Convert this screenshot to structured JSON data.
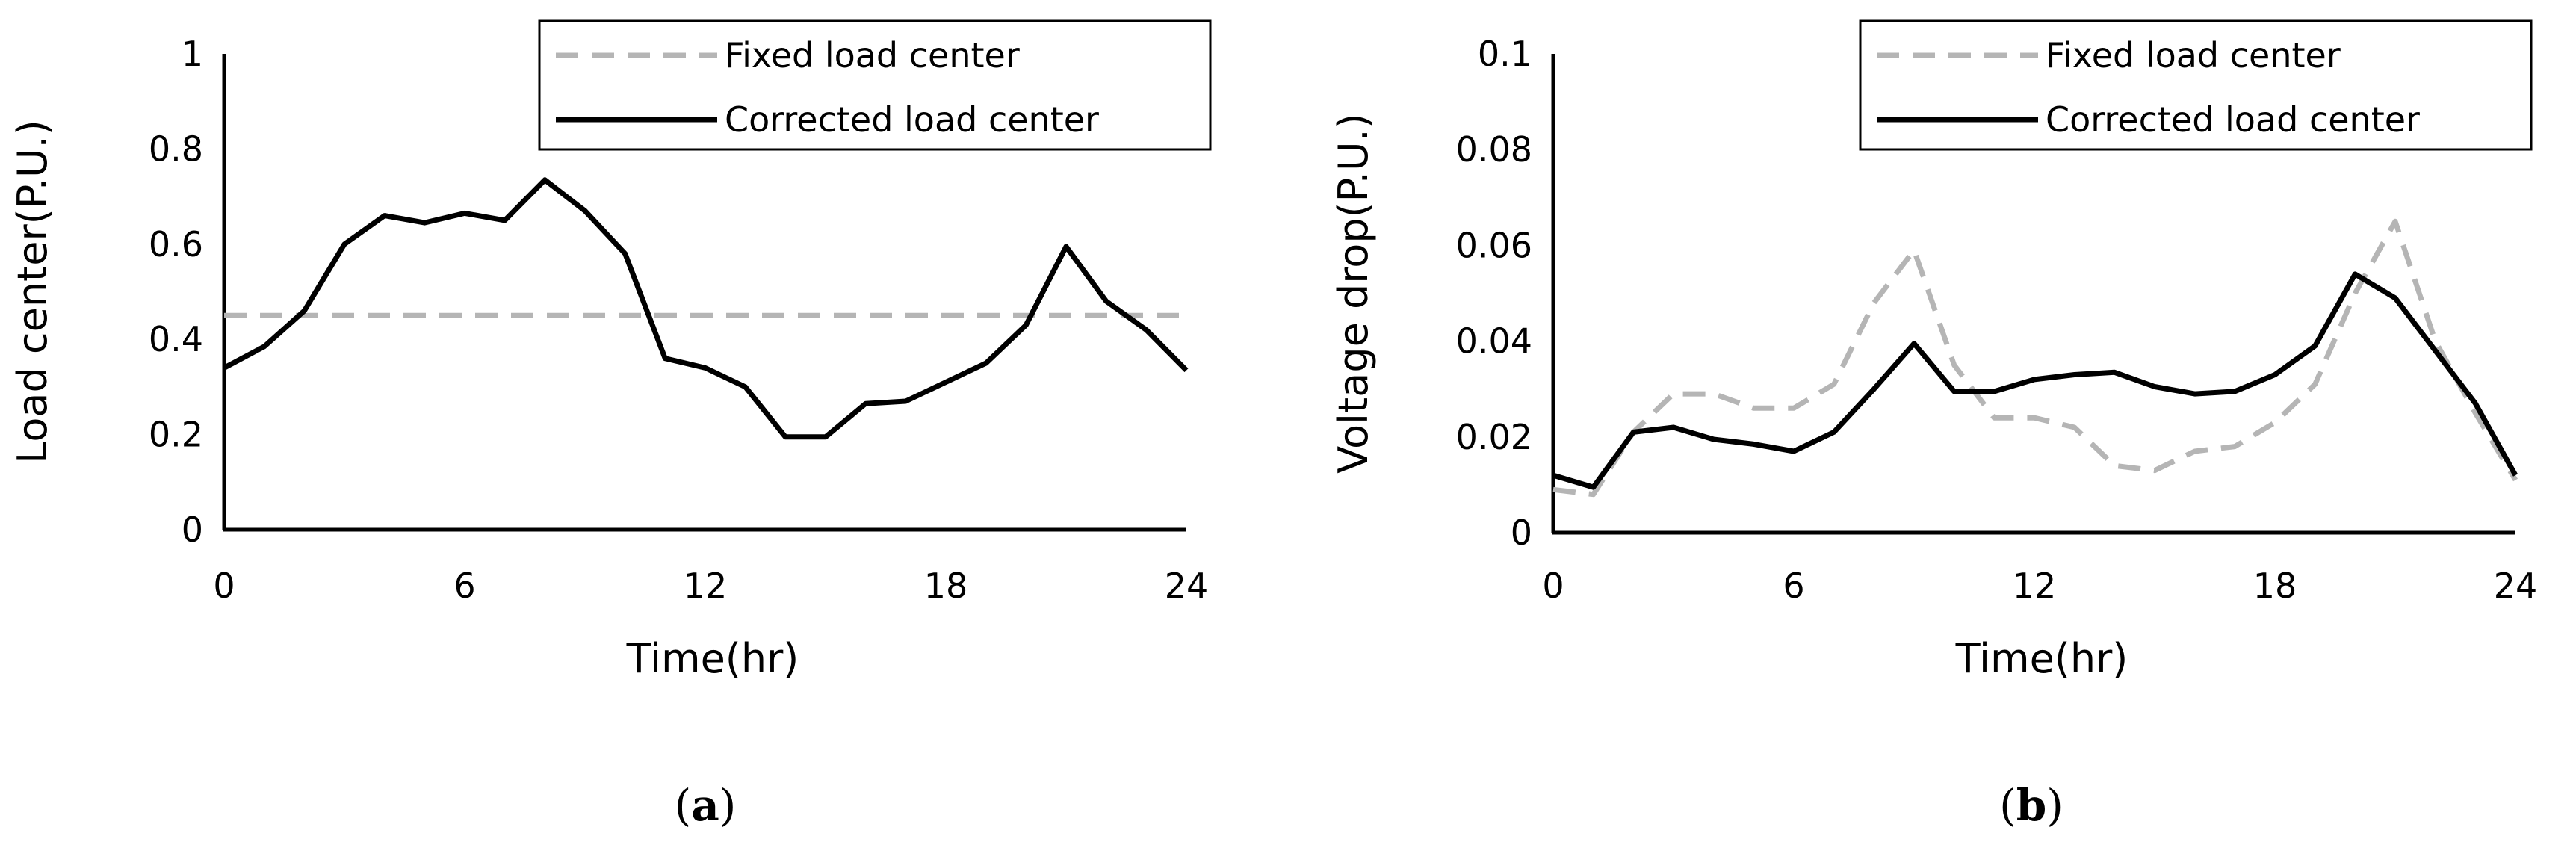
{
  "colors": {
    "fixed": "#b5b5b5",
    "corrected": "#000000"
  },
  "chart_data": [
    {
      "type": "line",
      "panel_label": "a",
      "xlabel": "Time(hr)",
      "ylabel": "Load center(P.U.)",
      "xlim": [
        0,
        24
      ],
      "ylim": [
        0,
        1
      ],
      "xticks": [
        0,
        6,
        12,
        18,
        24
      ],
      "xtick_labels": [
        "0",
        "6",
        "12",
        "18",
        "24"
      ],
      "yticks": [
        0,
        0.2,
        0.4,
        0.6,
        0.8,
        1
      ],
      "ytick_labels": [
        "0",
        "0.2",
        "0.4",
        "0.6",
        "0.8",
        "1"
      ],
      "grid": false,
      "legend": "top-right",
      "x": [
        0,
        1,
        2,
        3,
        4,
        5,
        6,
        7,
        8,
        9,
        10,
        11,
        12,
        13,
        14,
        15,
        16,
        17,
        18,
        19,
        20,
        21,
        22,
        23,
        24
      ],
      "series": [
        {
          "name": "Fixed load center",
          "style": "dashed",
          "values": [
            0.45,
            0.45,
            0.45,
            0.45,
            0.45,
            0.45,
            0.45,
            0.45,
            0.45,
            0.45,
            0.45,
            0.45,
            0.45,
            0.45,
            0.45,
            0.45,
            0.45,
            0.45,
            0.45,
            0.45,
            0.45,
            0.45,
            0.45,
            0.45,
            0.45
          ]
        },
        {
          "name": "Corrected load center",
          "style": "solid",
          "values": [
            0.34,
            0.385,
            0.46,
            0.6,
            0.66,
            0.645,
            0.665,
            0.65,
            0.735,
            0.67,
            0.58,
            0.36,
            0.34,
            0.3,
            0.195,
            0.195,
            0.265,
            0.27,
            0.31,
            0.35,
            0.43,
            0.595,
            0.48,
            0.42,
            0.335
          ]
        }
      ]
    },
    {
      "type": "line",
      "panel_label": "b",
      "xlabel": "Time(hr)",
      "ylabel": "Voltage drop(P.U.)",
      "xlim": [
        0,
        24
      ],
      "ylim": [
        0,
        0.1
      ],
      "xticks": [
        0,
        6,
        12,
        18,
        24
      ],
      "xtick_labels": [
        "0",
        "6",
        "12",
        "18",
        "24"
      ],
      "yticks": [
        0,
        0.02,
        0.04,
        0.06,
        0.08,
        0.1
      ],
      "ytick_labels": [
        "0",
        "0.02",
        "0.04",
        "0.06",
        "0.08",
        "0.1"
      ],
      "grid": false,
      "legend": "top-right",
      "x": [
        0,
        1,
        2,
        3,
        4,
        5,
        6,
        7,
        8,
        9,
        10,
        11,
        12,
        13,
        14,
        15,
        16,
        17,
        18,
        19,
        20,
        21,
        22,
        23,
        24
      ],
      "series": [
        {
          "name": "Fixed load center",
          "style": "dashed",
          "values": [
            0.009,
            0.008,
            0.021,
            0.029,
            0.029,
            0.026,
            0.026,
            0.031,
            0.048,
            0.059,
            0.035,
            0.024,
            0.024,
            0.022,
            0.014,
            0.013,
            0.017,
            0.018,
            0.023,
            0.031,
            0.05,
            0.065,
            0.04,
            0.025,
            0.011
          ]
        },
        {
          "name": "Corrected load center",
          "style": "solid",
          "values": [
            0.012,
            0.0095,
            0.021,
            0.022,
            0.0195,
            0.0185,
            0.017,
            0.021,
            0.03,
            0.0395,
            0.0295,
            0.0295,
            0.032,
            0.033,
            0.0335,
            0.0305,
            0.029,
            0.0295,
            0.033,
            0.039,
            0.054,
            0.049,
            0.038,
            0.027,
            0.012
          ]
        }
      ]
    }
  ]
}
